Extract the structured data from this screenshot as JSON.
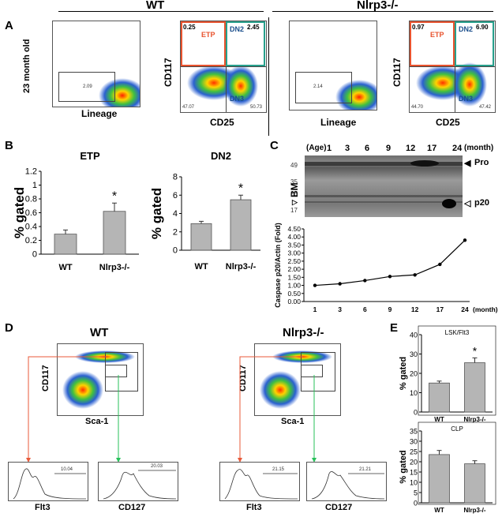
{
  "panelA": {
    "letter": "A",
    "wt_header": "WT",
    "ko_header": "Nlrp3-/-",
    "row_label": "23 month old",
    "lineage_label": "Lineage",
    "cd117_label": "CD117",
    "cd25_label": "CD25",
    "wt": {
      "lin_pct": "2.09",
      "etp_pct": "0.25",
      "dn2_pct": "2.45",
      "q3": "47.07",
      "q4": "50.73"
    },
    "ko": {
      "lin_pct": "2.14",
      "etp_pct": "0.97",
      "dn2_pct": "6.90",
      "q3": "44.70",
      "q4": "47.42"
    },
    "etp_label": "ETP",
    "dn2_label": "DN2",
    "dn3_label": "DN3",
    "colors": {
      "etp": "#e8532e",
      "dn2": "#27a08c"
    }
  },
  "panelB": {
    "letter": "B"
  },
  "panelC": {
    "letter": "C",
    "age_label": "(Age)",
    "ages": [
      "1",
      "3",
      "6",
      "9",
      "12",
      "17",
      "24"
    ],
    "month_label": "(month)",
    "bm_label": "BM",
    "mw_markers": [
      "49",
      "35",
      "25",
      "17"
    ],
    "pro_label": "Pro",
    "p20_label": "p20"
  },
  "panelD": {
    "letter": "D",
    "wt_header": "WT",
    "ko_header": "Nlrp3-/-",
    "cd117_label": "CD117",
    "sca1_label": "Sca-1",
    "flt3_label": "Flt3",
    "cd127_label": "CD127",
    "wt_hist": {
      "flt3_val": "10.04",
      "cd127_val": "20.03"
    },
    "ko_hist": {
      "flt3_val": "21.15",
      "cd127_val": "21.21"
    }
  },
  "panelE": {
    "letter": "E"
  },
  "chart_data": [
    {
      "id": "etp",
      "type": "bar",
      "title": "ETP",
      "ylabel": "% gated",
      "categories": [
        "WT",
        "Nlrp3-/-"
      ],
      "values": [
        0.29,
        0.62
      ],
      "errors": [
        0.06,
        0.12
      ],
      "significance": [
        "",
        "*"
      ],
      "ylim": [
        0,
        1.2
      ],
      "yticks": [
        "0",
        "0.2",
        "0.4",
        "0.6",
        "0.8",
        "1",
        "1.2"
      ]
    },
    {
      "id": "dn2",
      "type": "bar",
      "title": "DN2",
      "ylabel": "% gated",
      "categories": [
        "WT",
        "Nlrp3-/-"
      ],
      "values": [
        2.9,
        5.5
      ],
      "errors": [
        0.25,
        0.5
      ],
      "significance": [
        "",
        "*"
      ],
      "ylim": [
        0,
        8
      ],
      "yticks": [
        "0",
        "2",
        "4",
        "6",
        "8"
      ]
    },
    {
      "id": "caspase",
      "type": "line",
      "ylabel": "Caspase p20/Actin (Fold)",
      "categories": [
        "1",
        "3",
        "6",
        "9",
        "12",
        "17",
        "24"
      ],
      "x_unit": "(month)",
      "values": [
        1.0,
        1.1,
        1.3,
        1.55,
        1.65,
        2.3,
        3.8
      ],
      "ylim": [
        0,
        4.5
      ],
      "yticks": [
        "0.00",
        "0.50",
        "1.00",
        "1.50",
        "2.00",
        "2.50",
        "3.00",
        "3.50",
        "4.00",
        "4.50"
      ]
    },
    {
      "id": "lsk_flt3",
      "type": "bar",
      "title": "LSK/Flt3",
      "ylabel": "% gated",
      "categories": [
        "WT",
        "Nlrp3-/-"
      ],
      "values": [
        15,
        25.5
      ],
      "errors": [
        1,
        2.5
      ],
      "significance": [
        "",
        "*"
      ],
      "ylim": [
        0,
        40
      ],
      "yticks": [
        "0",
        "10",
        "20",
        "30",
        "40"
      ]
    },
    {
      "id": "clp",
      "type": "bar",
      "title": "CLP",
      "ylabel": "% gated",
      "categories": [
        "WT",
        "Nlrp3-/-"
      ],
      "values": [
        23.5,
        19
      ],
      "errors": [
        2,
        1.5
      ],
      "significance": [
        "",
        ""
      ],
      "ylim": [
        0,
        35
      ],
      "yticks": [
        "0",
        "5",
        "10",
        "15",
        "20",
        "25",
        "30",
        "35"
      ]
    }
  ]
}
